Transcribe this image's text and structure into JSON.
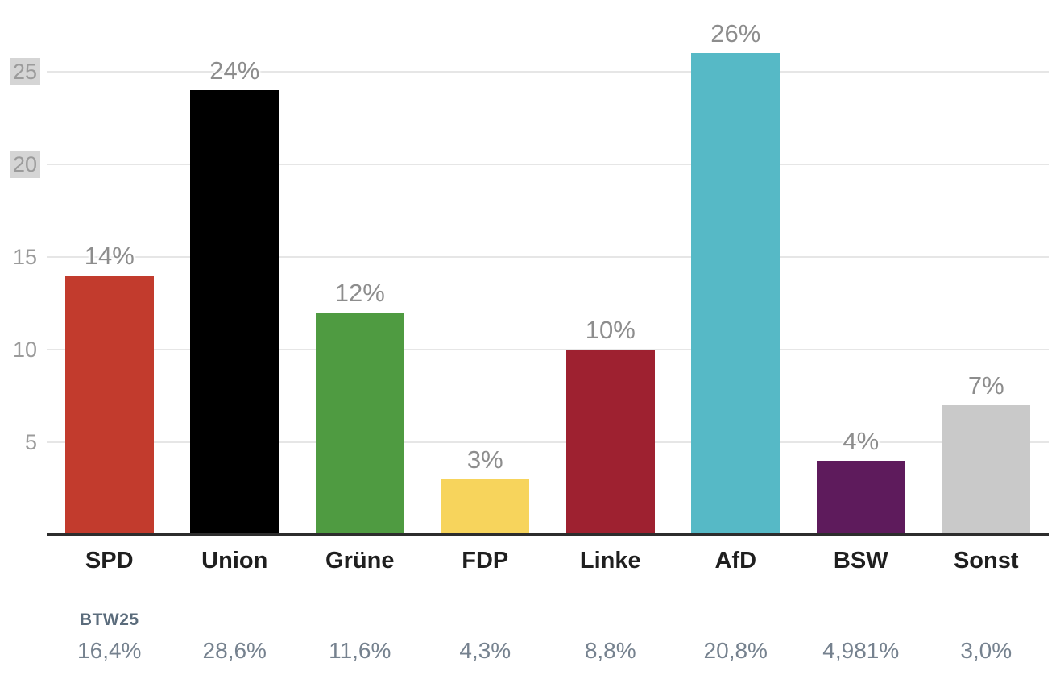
{
  "chart_data": {
    "type": "bar",
    "title": "",
    "xlabel": "",
    "ylabel": "",
    "categories": [
      "SPD",
      "Union",
      "Grüne",
      "FDP",
      "Linke",
      "AfD",
      "BSW",
      "Sonst"
    ],
    "values": [
      14,
      24,
      12,
      3,
      10,
      26,
      4,
      7
    ],
    "value_labels": [
      "14%",
      "24%",
      "12%",
      "3%",
      "10%",
      "26%",
      "4%",
      "7%"
    ],
    "bar_colors": [
      "#c23b2d",
      "#000000",
      "#4f9b41",
      "#f7d45c",
      "#9e2130",
      "#56b9c6",
      "#5e1b5c",
      "#c9c9c9"
    ],
    "ylim": [
      0,
      26
    ],
    "y_ticks": [
      5,
      10,
      15,
      20,
      25
    ],
    "y_tick_labels": [
      "5",
      "10",
      "15",
      "20",
      "25"
    ],
    "highlighted_y_ticks": [
      20,
      25
    ],
    "grid": true,
    "legend": null,
    "comparison_row": {
      "label": "BTW25",
      "values": [
        "16,4%",
        "28,6%",
        "11,6%",
        "4,3%",
        "8,8%",
        "20,8%",
        "4,981%",
        "3,0%"
      ]
    }
  },
  "colors": {
    "grid_line": "#e6e6e6",
    "axis_line": "#2d2d2d",
    "tick_text": "#9b9b9b",
    "tick_highlight_bg": "#d5d5d5",
    "bar_value_text": "#8d8d8d",
    "category_text": "#1f1f1f",
    "comparison_label_text": "#5b6c7c",
    "comparison_value_text": "#76828f"
  }
}
